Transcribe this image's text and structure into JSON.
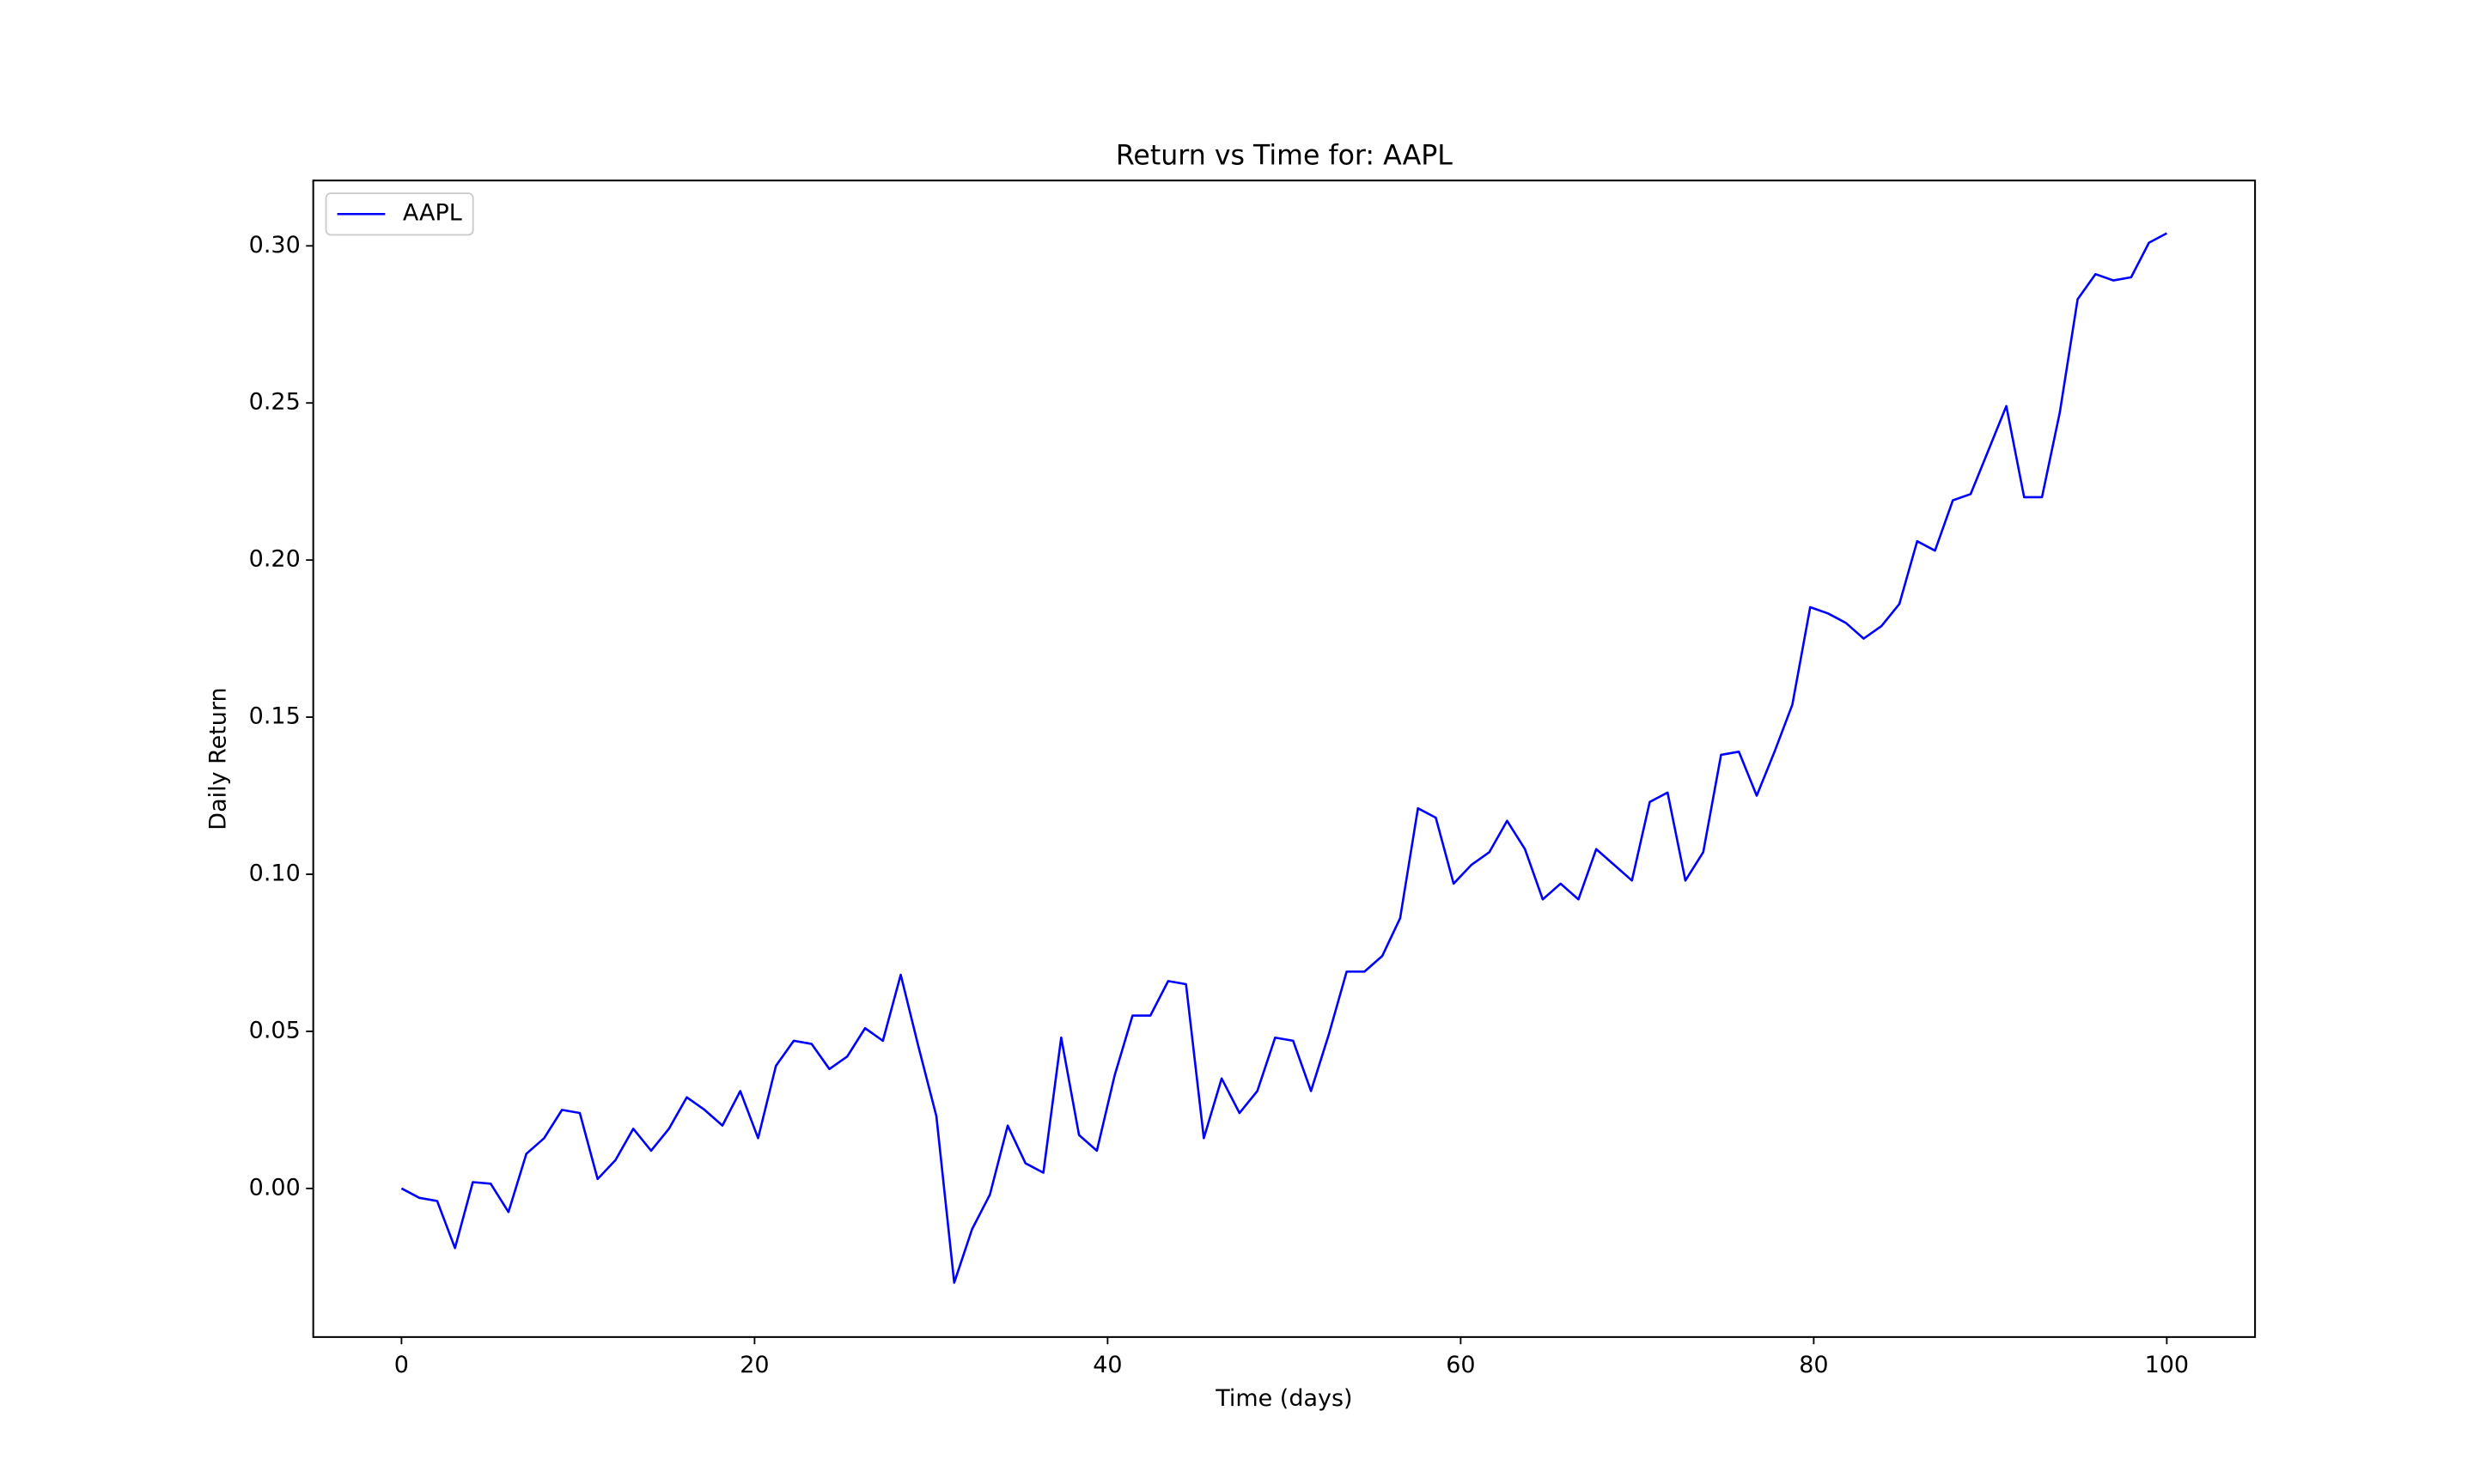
{
  "chart_data": {
    "type": "line",
    "title": "Return vs Time for: AAPL",
    "xlabel": "Time (days)",
    "ylabel": "Daily Return",
    "x": [
      0,
      1.01,
      2.02,
      3.03,
      4.04,
      5.05,
      6.06,
      7.07,
      8.08,
      9.09,
      10.1,
      11.11,
      12.12,
      13.13,
      14.14,
      15.15,
      16.16,
      17.17,
      18.18,
      19.19,
      20.2,
      21.21,
      22.22,
      23.23,
      24.24,
      25.25,
      26.26,
      27.27,
      28.28,
      29.29,
      30.3,
      31.31,
      32.32,
      33.33,
      34.34,
      35.35,
      36.36,
      37.37,
      38.38,
      39.39,
      40.4,
      41.41,
      42.42,
      43.43,
      44.44,
      45.45,
      46.46,
      47.47,
      48.48,
      49.49,
      50.51,
      51.52,
      52.53,
      53.54,
      54.55,
      55.56,
      56.57,
      57.58,
      58.59,
      59.6,
      60.61,
      61.62,
      62.63,
      63.64,
      64.65,
      65.66,
      66.67,
      67.68,
      68.69,
      69.7,
      70.71,
      71.72,
      72.73,
      73.74,
      74.75,
      75.76,
      76.77,
      77.78,
      78.79,
      79.8,
      80.81,
      81.82,
      82.83,
      83.84,
      84.85,
      85.86,
      86.87,
      87.88,
      88.89,
      89.9,
      90.91,
      91.92,
      92.93,
      93.94,
      94.95,
      95.96,
      96.97,
      97.98,
      98.99,
      100
    ],
    "series": [
      {
        "name": "AAPL",
        "color": "#0000ff",
        "values": [
          0,
          -0.003,
          -0.004,
          -0.019,
          0.002,
          0.0015,
          -0.0075,
          0.011,
          0.016,
          0.025,
          0.024,
          0.003,
          0.009,
          0.019,
          0.012,
          0.019,
          0.029,
          0.025,
          0.02,
          0.031,
          0.016,
          0.039,
          0.047,
          0.046,
          0.038,
          0.042,
          0.051,
          0.047,
          0.068,
          0.045,
          0.023,
          -0.03,
          -0.013,
          -0.002,
          0.02,
          0.008,
          0.005,
          0.048,
          0.017,
          0.012,
          0.036,
          0.055,
          0.055,
          0.066,
          0.065,
          0.016,
          0.035,
          0.024,
          0.031,
          0.048,
          0.047,
          0.031,
          0.049,
          0.069,
          0.069,
          0.074,
          0.086,
          0.121,
          0.118,
          0.097,
          0.103,
          0.107,
          0.117,
          0.108,
          0.092,
          0.097,
          0.092,
          0.108,
          0.103,
          0.098,
          0.123,
          0.126,
          0.098,
          0.107,
          0.138,
          0.139,
          0.125,
          0.139,
          0.154,
          0.185,
          0.183,
          0.18,
          0.175,
          0.179,
          0.186,
          0.206,
          0.203,
          0.219,
          0.221,
          0.235,
          0.249,
          0.22,
          0.22,
          0.247,
          0.283,
          0.291,
          0.289,
          0.29,
          0.301,
          0.304
        ]
      }
    ],
    "xlim": [
      -5,
      105
    ],
    "xticks": [
      0,
      20,
      40,
      60,
      80,
      100
    ],
    "ylim": [
      -0.0473,
      0.3208
    ],
    "yticks": [
      {
        "value": 0,
        "label": "0.00"
      },
      {
        "value": 0.05,
        "label": "0.05"
      },
      {
        "value": 0.1,
        "label": "0.10"
      },
      {
        "value": 0.15,
        "label": "0.15"
      },
      {
        "value": 0.2,
        "label": "0.20"
      },
      {
        "value": 0.25,
        "label": "0.25"
      },
      {
        "value": 0.3,
        "label": "0.30"
      }
    ],
    "legend": "upper left",
    "grid": false
  }
}
